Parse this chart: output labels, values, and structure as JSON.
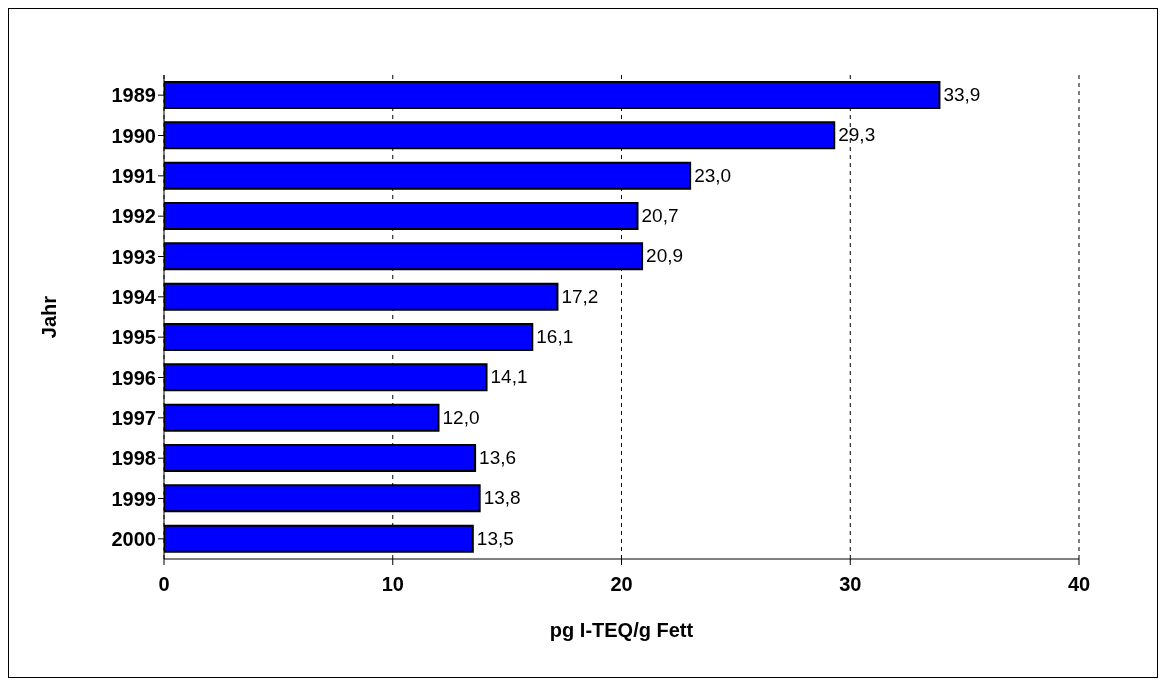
{
  "chart_data": {
    "type": "bar",
    "orientation": "horizontal",
    "xlabel": "pg I-TEQ/g Fett",
    "ylabel": "Jahr",
    "categories": [
      "1989",
      "1990",
      "1991",
      "1992",
      "1993",
      "1994",
      "1995",
      "1996",
      "1997",
      "1998",
      "1999",
      "2000"
    ],
    "values": [
      33.9,
      29.3,
      23.0,
      20.7,
      20.9,
      17.2,
      16.1,
      14.1,
      12.0,
      13.6,
      13.8,
      13.5
    ],
    "value_labels": [
      "33,9",
      "29,3",
      "23,0",
      "20,7",
      "20,9",
      "17,2",
      "16,1",
      "14,1",
      "12,0",
      "13,6",
      "13,8",
      "13,5"
    ],
    "color": "#0000ff",
    "xlim": [
      0,
      40
    ],
    "xticks": [
      0,
      10,
      20,
      30,
      40
    ],
    "grid": "x"
  }
}
